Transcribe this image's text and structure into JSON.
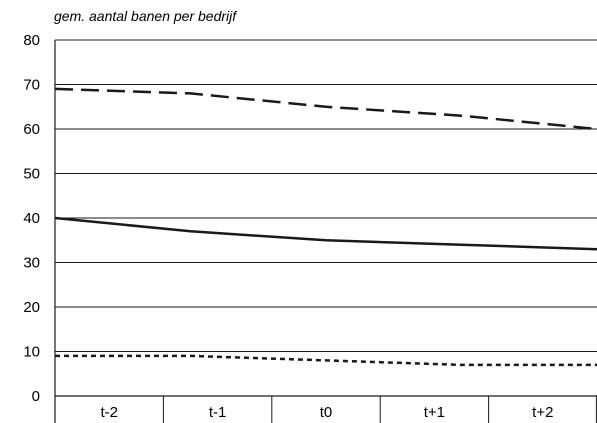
{
  "chart_data": {
    "type": "line",
    "ylabel": "gem. aantal banen per bedrijf",
    "xlabel": "",
    "categories": [
      "t-2",
      "t-1",
      "t0",
      "t+1",
      "t+2"
    ],
    "ylim": [
      0,
      80
    ],
    "yticks": [
      0,
      10,
      20,
      30,
      40,
      50,
      60,
      70,
      80
    ],
    "grid": "horizontal",
    "series": [
      {
        "values": [
          69,
          68,
          65,
          63,
          60
        ],
        "style": "dashed"
      },
      {
        "values": [
          40,
          37,
          35,
          34,
          33
        ],
        "style": "solid"
      },
      {
        "values": [
          9,
          9,
          8,
          7,
          7
        ],
        "style": "dotted"
      }
    ]
  }
}
